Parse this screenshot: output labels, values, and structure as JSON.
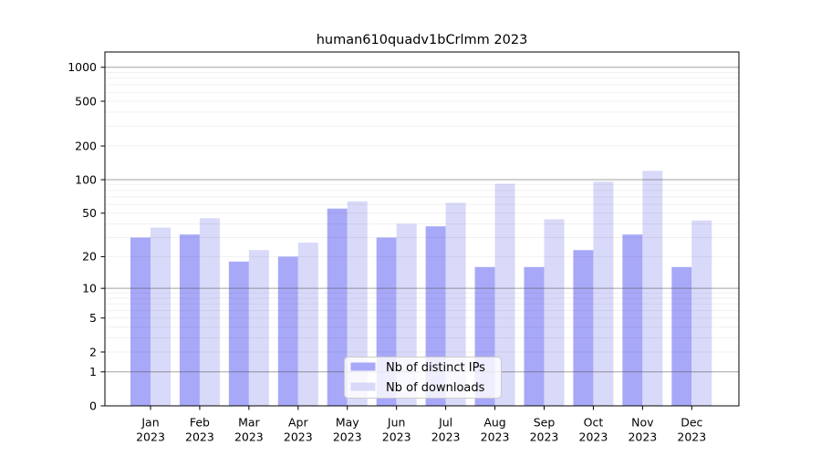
{
  "chart_data": {
    "type": "bar",
    "title": "human610quadv1bCrlmm 2023",
    "categories": [
      "Jan 2023",
      "Feb 2023",
      "Mar 2023",
      "Apr 2023",
      "May 2023",
      "Jun 2023",
      "Jul 2023",
      "Aug 2023",
      "Sep 2023",
      "Oct 2023",
      "Nov 2023",
      "Dec 2023"
    ],
    "series": [
      {
        "name": "Nb of distinct IPs",
        "color": "#a8a8f8",
        "values": [
          30,
          32,
          18,
          20,
          55,
          30,
          38,
          16,
          16,
          23,
          32,
          16
        ]
      },
      {
        "name": "Nb of downloads",
        "color": "#d9d9f9",
        "values": [
          37,
          45,
          23,
          27,
          64,
          40,
          62,
          92,
          44,
          96,
          120,
          43
        ]
      }
    ],
    "xlabel": "",
    "ylabel": "",
    "yscale": "log10(1+x)",
    "yticks": [
      0,
      1,
      2,
      5,
      10,
      20,
      50,
      100,
      200,
      500,
      1000
    ],
    "ylim": [
      0,
      1200
    ],
    "grid": true,
    "grid_minor": true,
    "legend_position": "lower center",
    "legend": {
      "labels": [
        "Nb of distinct IPs",
        "Nb of downloads"
      ],
      "background": "#ffffff",
      "border_color": "#cccccc"
    },
    "axis_color": "#000000"
  }
}
